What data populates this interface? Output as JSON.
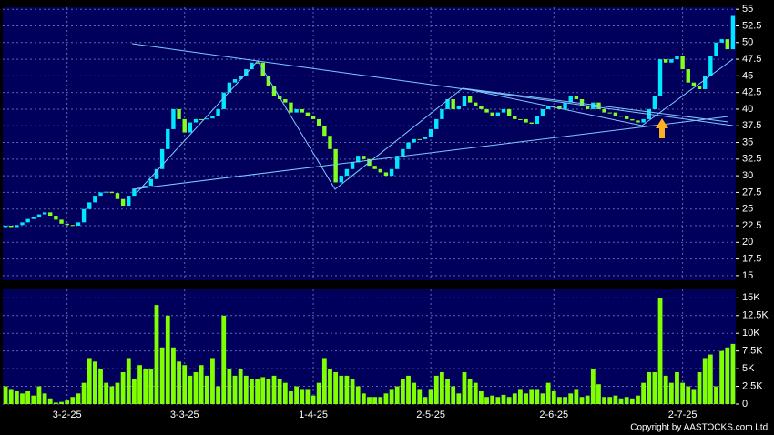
{
  "chart_data": [
    {
      "type": "candlestick",
      "up_color": "#00e8ff",
      "down_color": "#80ff20",
      "ylim": [
        14.3,
        55.3
      ],
      "yticks": [
        15,
        17.5,
        20,
        22.5,
        25,
        27.5,
        30,
        32.5,
        35,
        37.5,
        40,
        42.5,
        45,
        47.5,
        50,
        52.5,
        55
      ],
      "grid": true,
      "open": [
        22.3,
        22.5,
        22.3,
        22.6,
        23.0,
        23.5,
        23.8,
        24.2,
        24.5,
        24.0,
        23.4,
        22.8,
        22.6,
        22.5,
        23.0,
        25.0,
        26.0,
        27.0,
        27.5,
        27.6,
        27.4,
        26.5,
        25.5,
        27.0,
        28.0,
        28.2,
        28.5,
        29.5,
        31.0,
        34.0,
        37.0,
        40.0,
        38.5,
        36.5,
        38.0,
        38.5,
        38.5,
        38.6,
        39.0,
        40.0,
        42.5,
        44.0,
        44.5,
        45.0,
        46.0,
        47.0,
        47.0,
        45.0,
        43.5,
        42.0,
        41.5,
        41.0,
        39.5,
        40.0,
        39.5,
        39.0,
        38.5,
        37.5,
        36.0,
        34.0,
        29.0,
        30.0,
        31.0,
        32.0,
        33.0,
        32.5,
        31.5,
        31.0,
        30.5,
        30.0,
        31.0,
        33.0,
        34.0,
        35.0,
        35.5,
        35.5,
        35.8,
        37.0,
        38.5,
        40.0,
        41.5,
        40.0,
        40.5,
        42.0,
        41.0,
        40.5,
        40.0,
        39.5,
        39.0,
        39.5,
        40.0,
        39.0,
        38.5,
        38.5,
        38.0,
        37.8,
        39.0,
        40.0,
        40.5,
        40.5,
        40.0,
        41.0,
        42.0,
        41.5,
        40.5,
        40.0,
        41.0,
        40.0,
        39.5,
        39.5,
        39.0,
        39.0,
        38.5,
        38.3,
        38.0,
        38.5,
        40.0,
        42.0,
        47.5,
        47.0,
        47.5,
        48.0,
        46.0,
        44.0,
        43.5,
        43.0,
        45.0,
        48.0,
        50.0,
        50.5,
        49.0
      ],
      "close": [
        22.5,
        22.3,
        22.6,
        23.0,
        23.5,
        23.8,
        24.2,
        24.5,
        24.0,
        23.4,
        22.8,
        22.6,
        22.5,
        23.0,
        25.0,
        26.0,
        27.0,
        27.5,
        27.6,
        27.4,
        26.5,
        25.5,
        27.0,
        28.0,
        28.2,
        28.5,
        29.5,
        31.0,
        34.0,
        37.0,
        40.0,
        38.5,
        36.5,
        38.0,
        38.5,
        38.5,
        38.6,
        39.0,
        40.0,
        42.5,
        44.0,
        44.5,
        45.0,
        46.0,
        47.0,
        47.0,
        45.0,
        43.5,
        42.0,
        41.5,
        41.0,
        39.5,
        40.0,
        39.5,
        39.0,
        38.5,
        37.5,
        36.0,
        34.0,
        29.0,
        30.0,
        31.0,
        32.0,
        33.0,
        32.5,
        31.5,
        31.0,
        30.5,
        30.0,
        31.0,
        33.0,
        34.0,
        35.0,
        35.5,
        35.5,
        35.8,
        37.0,
        38.5,
        40.0,
        41.5,
        40.0,
        40.5,
        42.0,
        41.0,
        40.5,
        40.0,
        39.5,
        39.0,
        39.5,
        40.0,
        39.0,
        38.5,
        38.5,
        38.0,
        37.8,
        39.0,
        40.0,
        40.5,
        40.5,
        40.0,
        41.0,
        42.0,
        41.5,
        40.5,
        40.0,
        41.0,
        40.0,
        39.5,
        39.5,
        39.0,
        39.0,
        38.5,
        38.3,
        38.0,
        38.5,
        40.0,
        42.0,
        47.5,
        47.0,
        47.5,
        48.0,
        46.0,
        44.0,
        43.5,
        43.0,
        45.0,
        48.0,
        50.0,
        50.5,
        49.0,
        54.0
      ]
    },
    {
      "type": "bar",
      "color": "#80ff00",
      "ylim": [
        0,
        16200
      ],
      "yticks": [
        0,
        {
          "value": 2500,
          "label": "2.5K"
        },
        {
          "value": 5000,
          "label": "5K"
        },
        {
          "value": 7500,
          "label": "7.5K"
        },
        {
          "value": 10000,
          "label": "10K"
        },
        {
          "value": 12500,
          "label": "12.5K"
        },
        {
          "value": 15000,
          "label": "15K"
        }
      ],
      "grid": true,
      "categories": [
        null,
        null,
        null,
        null,
        null,
        null,
        null,
        null,
        null,
        null,
        null,
        "3-2-25",
        null,
        null,
        null,
        null,
        null,
        null,
        null,
        null,
        null,
        null,
        null,
        null,
        null,
        null,
        null,
        null,
        null,
        null,
        null,
        null,
        "3-3-25",
        null,
        null,
        null,
        null,
        null,
        null,
        null,
        null,
        null,
        null,
        null,
        null,
        null,
        null,
        null,
        null,
        null,
        null,
        null,
        null,
        null,
        null,
        "1-4-25",
        null,
        null,
        null,
        null,
        null,
        null,
        null,
        null,
        null,
        null,
        null,
        null,
        null,
        null,
        null,
        null,
        null,
        null,
        null,
        null,
        "2-5-25",
        null,
        null,
        null,
        null,
        null,
        null,
        null,
        null,
        null,
        null,
        null,
        null,
        null,
        null,
        null,
        null,
        null,
        null,
        null,
        null,
        null,
        "2-6-25",
        null,
        null,
        null,
        null,
        null,
        null,
        null,
        null,
        null,
        null,
        null,
        null,
        null,
        null,
        null,
        null,
        null,
        null,
        null,
        null,
        null,
        null,
        "2-7-25",
        null,
        null,
        null,
        null,
        null,
        null,
        null,
        null,
        null
      ],
      "values": [
        2500,
        2000,
        1800,
        1500,
        1800,
        1200,
        2500,
        1500,
        800,
        200,
        300,
        500,
        1000,
        1500,
        3000,
        6500,
        6000,
        5000,
        3000,
        2500,
        3000,
        4500,
        6500,
        3500,
        5500,
        5000,
        5000,
        14000,
        8000,
        12500,
        8000,
        6000,
        5500,
        4000,
        4500,
        5500,
        4000,
        6500,
        2500,
        12500,
        5000,
        4000,
        5000,
        4000,
        3500,
        3500,
        3800,
        3500,
        4000,
        3500,
        3000,
        1800,
        2500,
        2000,
        2000,
        1200,
        3000,
        6500,
        5000,
        4500,
        4000,
        4000,
        3500,
        2500,
        1500,
        1000,
        1000,
        1000,
        1500,
        2000,
        2500,
        3500,
        4000,
        3000,
        2000,
        1000,
        2000,
        4000,
        4500,
        3500,
        2500,
        1500,
        4500,
        3500,
        3000,
        1800,
        1000,
        1200,
        1000,
        1300,
        1000,
        1500,
        2000,
        1500,
        2000,
        2000,
        1500,
        3000,
        1800,
        1000,
        1000,
        1500,
        2000,
        1000,
        1200,
        5000,
        2800,
        1000,
        1000,
        1200,
        800,
        1000,
        800,
        1200,
        3000,
        4500,
        4500,
        15000,
        4000,
        3000,
        4500,
        3000,
        2500,
        2000,
        4500,
        6500,
        7000,
        2500,
        7500,
        8000,
        8500
      ]
    }
  ],
  "copyright": "Copyright by AASTOCKS.com Ltd."
}
